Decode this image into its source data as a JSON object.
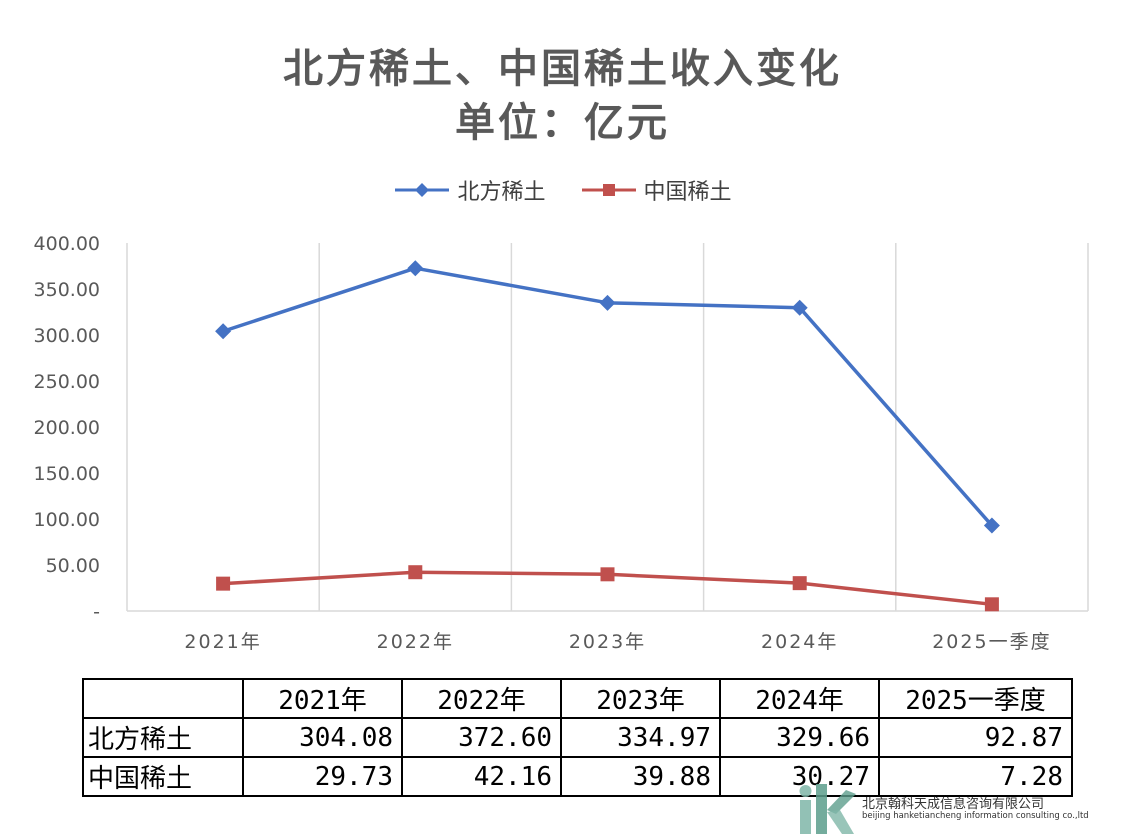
{
  "chart_data": {
    "type": "line",
    "title": "北方稀土、中国稀土收入变化",
    "subtitle": "单位：亿元",
    "categories": [
      "2021年",
      "2022年",
      "2023年",
      "2024年",
      "2025一季度"
    ],
    "series": [
      {
        "name": "北方稀土",
        "values": [
          304.08,
          372.6,
          334.97,
          329.66,
          92.87
        ],
        "color": "#4472C4",
        "marker": "diamond"
      },
      {
        "name": "中国稀土",
        "values": [
          29.73,
          42.16,
          39.88,
          30.27,
          7.28
        ],
        "color": "#C0504D",
        "marker": "square"
      }
    ],
    "ylim": [
      0,
      400
    ],
    "yticks": [
      "-",
      "50.00",
      "100.00",
      "150.00",
      "200.00",
      "250.00",
      "300.00",
      "350.00",
      "400.00"
    ],
    "grid": "vertical",
    "legend": "top-center"
  },
  "table": {
    "header": [
      "",
      "2021年",
      "2022年",
      "2023年",
      "2024年",
      "2025一季度"
    ],
    "rows": [
      [
        "北方稀土",
        "304.08",
        "372.60",
        "334.97",
        "329.66",
        "92.87"
      ],
      [
        "中国稀土",
        "29.73",
        "42.16",
        "39.88",
        "30.27",
        "7.28"
      ]
    ]
  },
  "watermark": {
    "company": "北京翰科天成信息咨询有限公司",
    "company_en": "beijing hanketiancheng information consulting co.,ltd"
  }
}
